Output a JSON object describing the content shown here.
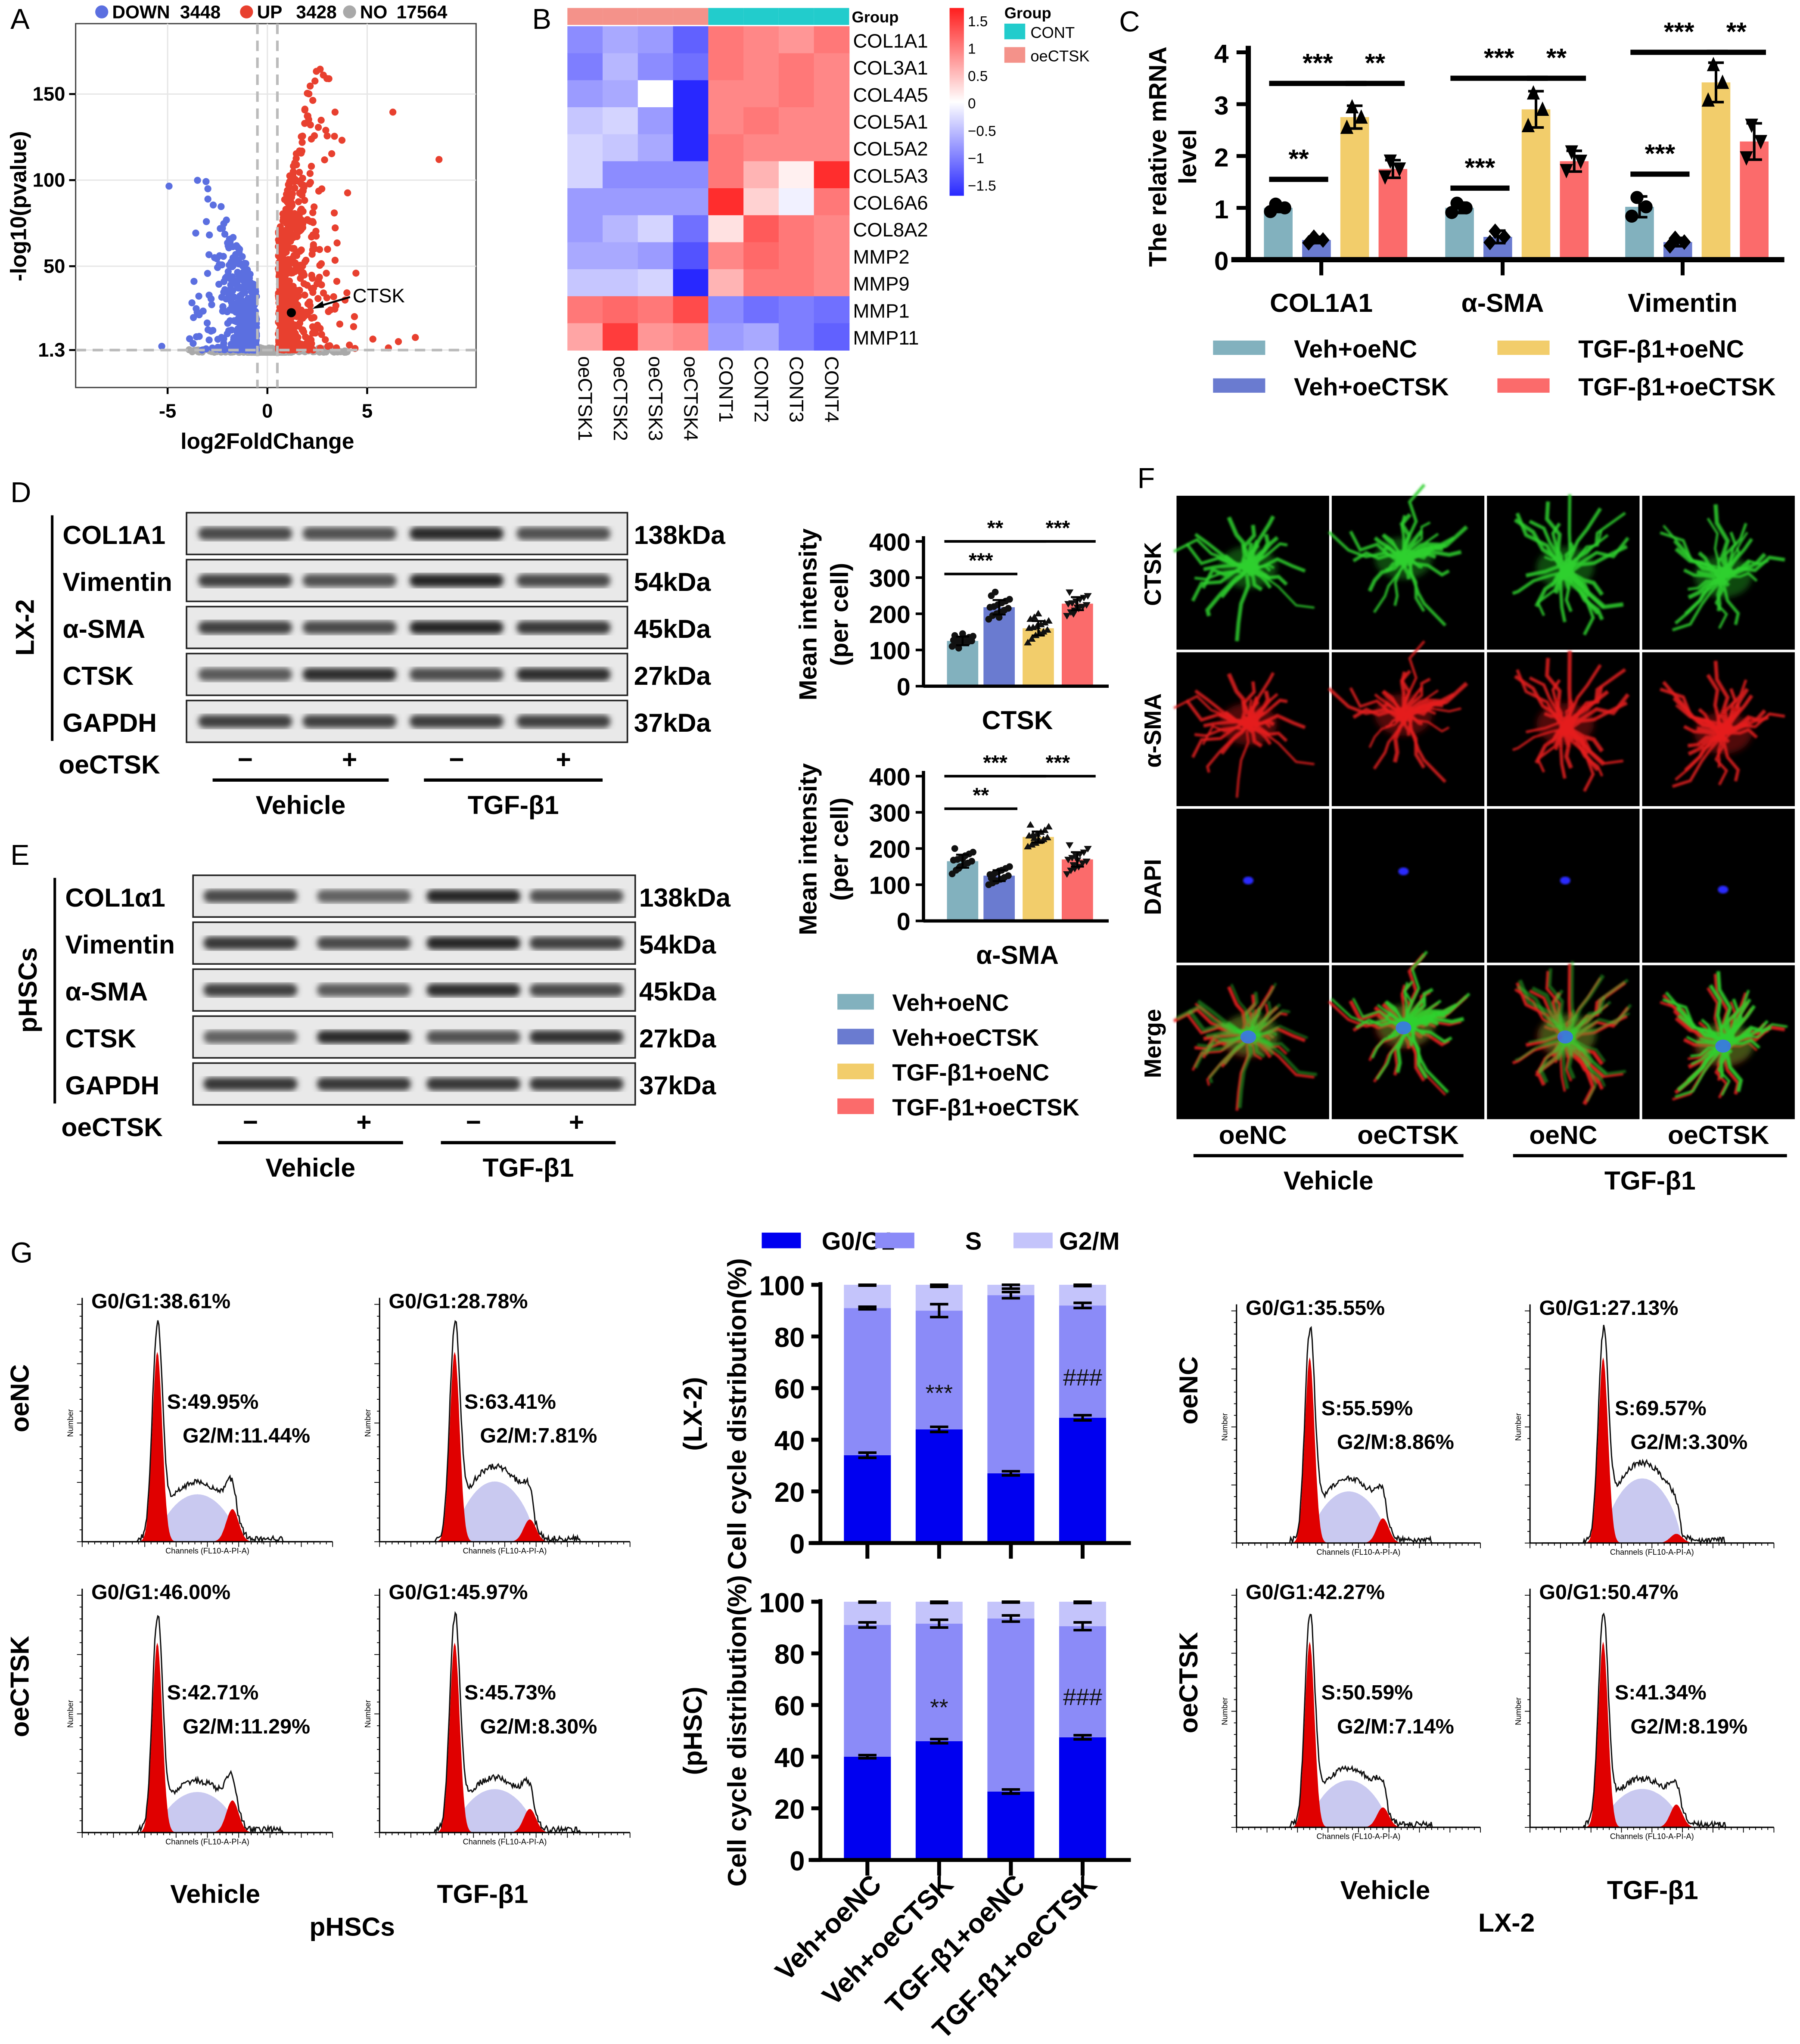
{
  "panel_labels": {
    "A": "A",
    "B": "B",
    "C": "C",
    "D": "D",
    "E": "E",
    "F": "F",
    "G": "G"
  },
  "chart_data": [
    {
      "id": "A",
      "type": "scatter",
      "xlabel": "log2FoldChange",
      "ylabel": "-log10(pvalue)",
      "xticks": [
        "-5",
        "0",
        "5"
      ],
      "xtick_values": [
        -5,
        0,
        5
      ],
      "yticks": [
        "1.3",
        "50",
        "100",
        "150"
      ],
      "ytick_values": [
        1.3,
        50,
        100,
        150
      ],
      "xlim": [
        -9.6,
        10.5
      ],
      "ylim": [
        0,
        190
      ],
      "grid": true,
      "legend_placement": "top",
      "legend": [
        {
          "label": "DOWN",
          "count": "3448",
          "color": "#5b6fe0"
        },
        {
          "label": "UP",
          "count": "3428",
          "color": "#e8402f"
        },
        {
          "label": "NO",
          "count": "17564",
          "color": "#a9a9a9"
        }
      ],
      "thresholds": {
        "log2fc": [
          -0.5,
          0.5
        ],
        "neglog10p": 1.3
      },
      "annotation": {
        "label": "CTSK",
        "x": 1.2,
        "y": 23
      }
    },
    {
      "id": "B",
      "type": "heatmap",
      "group_label": "Group",
      "rows": [
        "COL1A1",
        "COL3A1",
        "COL4A5",
        "COL5A1",
        "COL5A2",
        "COL5A3",
        "COL6A6",
        "COL8A2",
        "MMP2",
        "MMP9",
        "MMP1",
        "MMP11"
      ],
      "columns": [
        "oeCTSK1",
        "oeCTSK2",
        "oeCTSK3",
        "oeCTSK4",
        "CONT1",
        "CONT2",
        "CONT3",
        "CONT4"
      ],
      "column_groups": [
        "oeCTSK",
        "oeCTSK",
        "oeCTSK",
        "oeCTSK",
        "CONT",
        "CONT",
        "CONT",
        "CONT"
      ],
      "values": [
        [
          -0.8,
          -0.6,
          -0.7,
          -1.1,
          0.9,
          0.8,
          0.7,
          0.9
        ],
        [
          -0.9,
          -0.5,
          -0.8,
          -1.0,
          0.9,
          0.8,
          0.9,
          0.8
        ],
        [
          -0.7,
          -0.6,
          0.0,
          -1.5,
          0.8,
          0.8,
          0.9,
          0.8
        ],
        [
          -0.4,
          -0.3,
          -0.7,
          -1.5,
          0.8,
          0.9,
          0.8,
          0.8
        ],
        [
          -0.3,
          -0.4,
          -0.6,
          -1.5,
          0.9,
          0.8,
          0.8,
          0.8
        ],
        [
          -0.3,
          -0.8,
          -0.8,
          -0.8,
          0.9,
          0.5,
          0.1,
          1.4
        ],
        [
          -0.7,
          -0.7,
          -0.7,
          -0.7,
          1.4,
          0.3,
          -0.1,
          0.9
        ],
        [
          -0.7,
          -0.5,
          -0.3,
          -1.0,
          0.2,
          1.1,
          0.9,
          0.8
        ],
        [
          -0.6,
          -0.6,
          -0.7,
          -1.2,
          0.8,
          1.0,
          0.9,
          0.8
        ],
        [
          -0.4,
          -0.4,
          -0.3,
          -1.5,
          0.5,
          0.9,
          0.9,
          0.8
        ],
        [
          0.9,
          1.0,
          0.9,
          1.2,
          -0.8,
          -1.0,
          -0.9,
          -1.0
        ],
        [
          0.6,
          1.3,
          0.7,
          0.8,
          -0.7,
          -0.6,
          -0.9,
          -1.1
        ]
      ],
      "colorbar": {
        "ticks": [
          "1.5",
          "1",
          "0.5",
          "0",
          "−0.5",
          "−1",
          "−1.5"
        ],
        "range": [
          -1.5,
          1.5
        ],
        "low_color": "#2828ff",
        "mid_color": "#ffffff",
        "high_color": "#ff1e1e"
      },
      "group_legend": {
        "title": "Group",
        "items": [
          {
            "label": "CONT",
            "color": "#22cccc"
          },
          {
            "label": "oeCTSK",
            "color": "#f4928a"
          }
        ]
      }
    },
    {
      "id": "C",
      "type": "bar",
      "ylabel_lines": [
        "The relative mRNA",
        "level"
      ],
      "categories": [
        "COL1A1",
        "α-SMA",
        "Vimentin"
      ],
      "yticks": [
        "0",
        "1",
        "2",
        "3",
        "4"
      ],
      "ylim": [
        0,
        4
      ],
      "series": [
        {
          "name": "Veh+oeNC",
          "color": "#82b1be",
          "values": [
            1.0,
            1.0,
            1.02
          ],
          "errors": [
            0.08,
            0.1,
            0.2
          ]
        },
        {
          "name": "Veh+oeCTSK",
          "color": "#6a7bd0",
          "values": [
            0.38,
            0.44,
            0.34
          ],
          "errors": [
            0.06,
            0.12,
            0.08
          ]
        },
        {
          "name": "TGF-β1+oeNC",
          "color": "#f2cd6b",
          "values": [
            2.75,
            2.9,
            3.42
          ],
          "errors": [
            0.22,
            0.35,
            0.38
          ]
        },
        {
          "name": "TGF-β1+oeCTSK",
          "color": "#fb6b6b",
          "values": [
            1.75,
            1.9,
            2.28
          ],
          "errors": [
            0.17,
            0.2,
            0.35
          ]
        }
      ],
      "significance": [
        {
          "category": 0,
          "from": 0,
          "to": 2,
          "level": 3.4,
          "label": "***"
        },
        {
          "category": 0,
          "from": 2,
          "to": 3,
          "level": 3.4,
          "label": "**"
        },
        {
          "category": 0,
          "from": 0,
          "to": 1,
          "level": 1.55,
          "label": "**"
        },
        {
          "category": 1,
          "from": 0,
          "to": 2,
          "level": 3.5,
          "label": "***"
        },
        {
          "category": 1,
          "from": 2,
          "to": 3,
          "level": 3.5,
          "label": "**"
        },
        {
          "category": 1,
          "from": 0,
          "to": 1,
          "level": 1.38,
          "label": "***"
        },
        {
          "category": 2,
          "from": 0,
          "to": 2,
          "level": 4.0,
          "label": "***"
        },
        {
          "category": 2,
          "from": 2,
          "to": 3,
          "level": 4.0,
          "label": "**"
        },
        {
          "category": 2,
          "from": 0,
          "to": 1,
          "level": 1.65,
          "label": "***"
        }
      ]
    },
    {
      "id": "D-quant",
      "type": "bar",
      "chart_label": "CTSK",
      "ylabel_lines": [
        "Mean intensity",
        "(per cell)"
      ],
      "yticks": [
        "0",
        "100",
        "200",
        "300",
        "400"
      ],
      "ylim": [
        0,
        400
      ],
      "categories": [
        "Veh+oeNC",
        "Veh+oeCTSK",
        "TGF-β1+oeNC",
        "TGF-β1+oeCTSK"
      ],
      "values": [
        125,
        218,
        160,
        228
      ],
      "errors": [
        12,
        20,
        20,
        18
      ],
      "points": [
        [
          110,
          115,
          118,
          120,
          122,
          125,
          127,
          128,
          130,
          132,
          135,
          138,
          140,
          105,
          145
        ],
        [
          185,
          195,
          200,
          205,
          210,
          215,
          218,
          220,
          225,
          230,
          235,
          240,
          250,
          260,
          190
        ],
        [
          120,
          130,
          140,
          145,
          150,
          155,
          160,
          162,
          165,
          170,
          175,
          180,
          185,
          190,
          200
        ],
        [
          195,
          205,
          210,
          215,
          220,
          225,
          228,
          230,
          235,
          240,
          245,
          250,
          260,
          200,
          218
        ]
      ],
      "significance": [
        {
          "from": 0,
          "to": 2,
          "level": 400,
          "label": "**"
        },
        {
          "from": 2,
          "to": 3,
          "level": 400,
          "label": "***"
        },
        {
          "from": 0,
          "to": 1,
          "level": 310,
          "label": "***"
        }
      ]
    },
    {
      "id": "E-quant",
      "type": "bar",
      "chart_label": "α-SMA",
      "ylabel_lines": [
        "Mean intensity",
        "(per cell)"
      ],
      "yticks": [
        "0",
        "100",
        "200",
        "300",
        "400"
      ],
      "ylim": [
        0,
        400
      ],
      "categories": [
        "Veh+oeNC",
        "Veh+oeCTSK",
        "TGF-β1+oeNC",
        "TGF-β1+oeCTSK"
      ],
      "values": [
        165,
        125,
        232,
        170
      ],
      "errors": [
        18,
        15,
        15,
        20
      ],
      "points": [
        [
          130,
          140,
          150,
          155,
          160,
          165,
          168,
          170,
          175,
          180,
          185,
          190,
          200,
          145,
          172
        ],
        [
          100,
          105,
          110,
          115,
          120,
          125,
          128,
          130,
          135,
          140,
          145,
          150,
          118,
          112,
          138
        ],
        [
          205,
          210,
          215,
          220,
          225,
          230,
          235,
          238,
          240,
          245,
          250,
          260,
          265,
          228,
          222
        ],
        [
          130,
          140,
          145,
          150,
          160,
          165,
          170,
          175,
          180,
          185,
          190,
          200,
          210,
          155,
          168
        ]
      ],
      "significance": [
        {
          "from": 0,
          "to": 2,
          "level": 400,
          "label": "***"
        },
        {
          "from": 2,
          "to": 3,
          "level": 400,
          "label": "***"
        },
        {
          "from": 0,
          "to": 1,
          "level": 310,
          "label": "**"
        }
      ]
    },
    {
      "id": "G-LX-2",
      "type": "bar",
      "stacked": true,
      "ylabel_lines": [
        "(LX-2)",
        "Cell cycle distribution(%)"
      ],
      "yticks": [
        "0",
        "20",
        "40",
        "60",
        "80",
        "100"
      ],
      "ylim": [
        0,
        100
      ],
      "categories": [
        "Veh+oeNC",
        "Veh+oeCTSK",
        "TGF-β1+oeNC",
        "TGF-β1+oeCTSK"
      ],
      "series": [
        {
          "name": "G0/G1",
          "color": "#0000f0",
          "values": [
            34,
            44,
            27,
            48.5
          ],
          "errors": [
            1,
            1,
            0.8,
            1
          ]
        },
        {
          "name": "S",
          "color": "#8b8bf8",
          "values": [
            57,
            46,
            69,
            43.5
          ],
          "errors": [
            0.5,
            2.5,
            1.2,
            1
          ]
        },
        {
          "name": "G2/M",
          "color": "#c4c4fb",
          "values": [
            9,
            10,
            4,
            8
          ],
          "errors": [
            0.3,
            0.8,
            1.5,
            0.5
          ]
        }
      ],
      "annotations": [
        {
          "bar": 1,
          "level": 55,
          "label": "***"
        },
        {
          "bar": 3,
          "level": 61,
          "label": "###"
        }
      ],
      "legend_placement": "top"
    },
    {
      "id": "G-pHSC",
      "type": "bar",
      "stacked": true,
      "ylabel_lines": [
        "(pHSC)",
        "Cell cycle distribution(%)"
      ],
      "yticks": [
        "0",
        "20",
        "40",
        "60",
        "80",
        "100"
      ],
      "ylim": [
        0,
        100
      ],
      "categories": [
        "Veh+oeNC",
        "Veh+oeCTSK",
        "TGF-β1+oeNC",
        "TGF-β1+oeCTSK"
      ],
      "series": [
        {
          "name": "G0/G1",
          "color": "#0000f0",
          "values": [
            40,
            46,
            26.5,
            47.5
          ],
          "errors": [
            0.6,
            0.8,
            0.8,
            0.8
          ]
        },
        {
          "name": "S",
          "color": "#8b8bf8",
          "values": [
            51,
            45.5,
            67,
            43
          ],
          "errors": [
            1,
            1.5,
            1.2,
            1.5
          ]
        },
        {
          "name": "G2/M",
          "color": "#c4c4fb",
          "values": [
            9,
            8.5,
            6.5,
            9.5
          ],
          "errors": [
            0.3,
            0.5,
            0.3,
            0.5
          ]
        }
      ],
      "annotations": [
        {
          "bar": 1,
          "level": 56,
          "label": "**"
        },
        {
          "bar": 3,
          "level": 60,
          "label": "###"
        }
      ]
    }
  ],
  "western_blots": {
    "D": {
      "cell_line": "LX-2",
      "treatment_label": "oeCTSK",
      "lane_signs": [
        "−",
        "+",
        "−",
        "+"
      ],
      "groups": [
        "Vehicle",
        "TGF-β1"
      ],
      "rows": [
        {
          "protein": "COL1A1",
          "kda": "138kDa",
          "intensity": [
            0.75,
            0.7,
            0.92,
            0.7
          ]
        },
        {
          "protein": "Vimentin",
          "kda": "54kDa",
          "intensity": [
            0.8,
            0.7,
            0.95,
            0.75
          ]
        },
        {
          "protein": "α-SMA",
          "kda": "45kDa",
          "intensity": [
            0.8,
            0.75,
            0.95,
            0.85
          ]
        },
        {
          "protein": "CTSK",
          "kda": "27kDa",
          "intensity": [
            0.65,
            0.9,
            0.72,
            0.9
          ]
        },
        {
          "protein": "GAPDH",
          "kda": "37kDa",
          "intensity": [
            0.8,
            0.8,
            0.82,
            0.8
          ]
        }
      ]
    },
    "E": {
      "cell_line": "pHSCs",
      "treatment_label": "oeCTSK",
      "lane_signs": [
        "−",
        "+",
        "−",
        "+"
      ],
      "groups": [
        "Vehicle",
        "TGF-β1"
      ],
      "rows": [
        {
          "protein": "COL1α1",
          "kda": "138kDa",
          "intensity": [
            0.75,
            0.6,
            0.95,
            0.7
          ]
        },
        {
          "protein": "Vimentin",
          "kda": "54kDa",
          "intensity": [
            0.85,
            0.75,
            0.95,
            0.8
          ]
        },
        {
          "protein": "α-SMA",
          "kda": "45kDa",
          "intensity": [
            0.8,
            0.65,
            0.9,
            0.75
          ]
        },
        {
          "protein": "CTSK",
          "kda": "27kDa",
          "intensity": [
            0.6,
            0.92,
            0.7,
            0.88
          ]
        },
        {
          "protein": "GAPDH",
          "kda": "37kDa",
          "intensity": [
            0.85,
            0.85,
            0.85,
            0.85
          ]
        }
      ]
    }
  },
  "quant_legend": [
    {
      "label": "Veh+oeNC",
      "color": "#82b1be"
    },
    {
      "label": "Veh+oeCTSK",
      "color": "#6a7bd0"
    },
    {
      "label": "TGF-β1+oeNC",
      "color": "#f2cd6b"
    },
    {
      "label": "TGF-β1+oeCTSK",
      "color": "#fb6b6b"
    }
  ],
  "immunofluorescence": {
    "rows": [
      {
        "label": "CTSK",
        "color": "#2ed02e"
      },
      {
        "label": "α-SMA",
        "color": "#e51c1c"
      },
      {
        "label": "DAPI",
        "color": "#2a2aff"
      },
      {
        "label": "Merge",
        "color": "merge"
      }
    ],
    "columns": [
      "oeNC",
      "oeCTSK",
      "oeNC",
      "oeCTSK"
    ],
    "groups": [
      "Vehicle",
      "TGF-β1"
    ]
  },
  "flow_cytometry": {
    "x_axis_caption": "Channels (FL10-A-PI-A)",
    "y_axis_caption": "Number",
    "pHSCs": {
      "title": "pHSCs",
      "row_labels": [
        "oeNC",
        "oeCTSK"
      ],
      "col_labels": [
        "Vehicle",
        "TGF-β1"
      ],
      "histograms": [
        {
          "g0g1": "G0/G1:38.61%",
          "s": "S:49.95%",
          "g2m": "G2/M:11.44%",
          "g0g1_value": 38.61,
          "s_value": 49.95,
          "g2m_value": 11.44
        },
        {
          "g0g1": "G0/G1:28.78%",
          "s": "S:63.41%",
          "g2m": "G2/M:7.81%",
          "g0g1_value": 28.78,
          "s_value": 63.41,
          "g2m_value": 7.81
        },
        {
          "g0g1": "G0/G1:46.00%",
          "s": "S:42.71%",
          "g2m": "G2/M:11.29%",
          "g0g1_value": 46.0,
          "s_value": 42.71,
          "g2m_value": 11.29
        },
        {
          "g0g1": "G0/G1:45.97%",
          "s": "S:45.73%",
          "g2m": "G2/M:8.30%",
          "g0g1_value": 45.97,
          "s_value": 45.73,
          "g2m_value": 8.3
        }
      ]
    },
    "LX-2": {
      "title": "LX-2",
      "row_labels": [
        "oeNC",
        "oeCTSK"
      ],
      "col_labels": [
        "Vehicle",
        "TGF-β1"
      ],
      "histograms": [
        {
          "g0g1": "G0/G1:35.55%",
          "s": "S:55.59%",
          "g2m": "G2/M:8.86%",
          "g0g1_value": 35.55,
          "s_value": 55.59,
          "g2m_value": 8.86
        },
        {
          "g0g1": "G0/G1:27.13%",
          "s": "S:69.57%",
          "g2m": "G2/M:3.30%",
          "g0g1_value": 27.13,
          "s_value": 69.57,
          "g2m_value": 3.3
        },
        {
          "g0g1": "G0/G1:42.27%",
          "s": "S:50.59%",
          "g2m": "G2/M:7.14%",
          "g0g1_value": 42.27,
          "s_value": 50.59,
          "g2m_value": 7.14
        },
        {
          "g0g1": "G0/G1:50.47%",
          "s": "S:41.34%",
          "g2m": "G2/M:8.19%",
          "g0g1_value": 50.47,
          "s_value": 41.34,
          "g2m_value": 8.19
        }
      ]
    },
    "colors": {
      "g0g1_peak": "#e00000",
      "s_phase": "#c9c9f0",
      "outline": "#111111"
    }
  }
}
